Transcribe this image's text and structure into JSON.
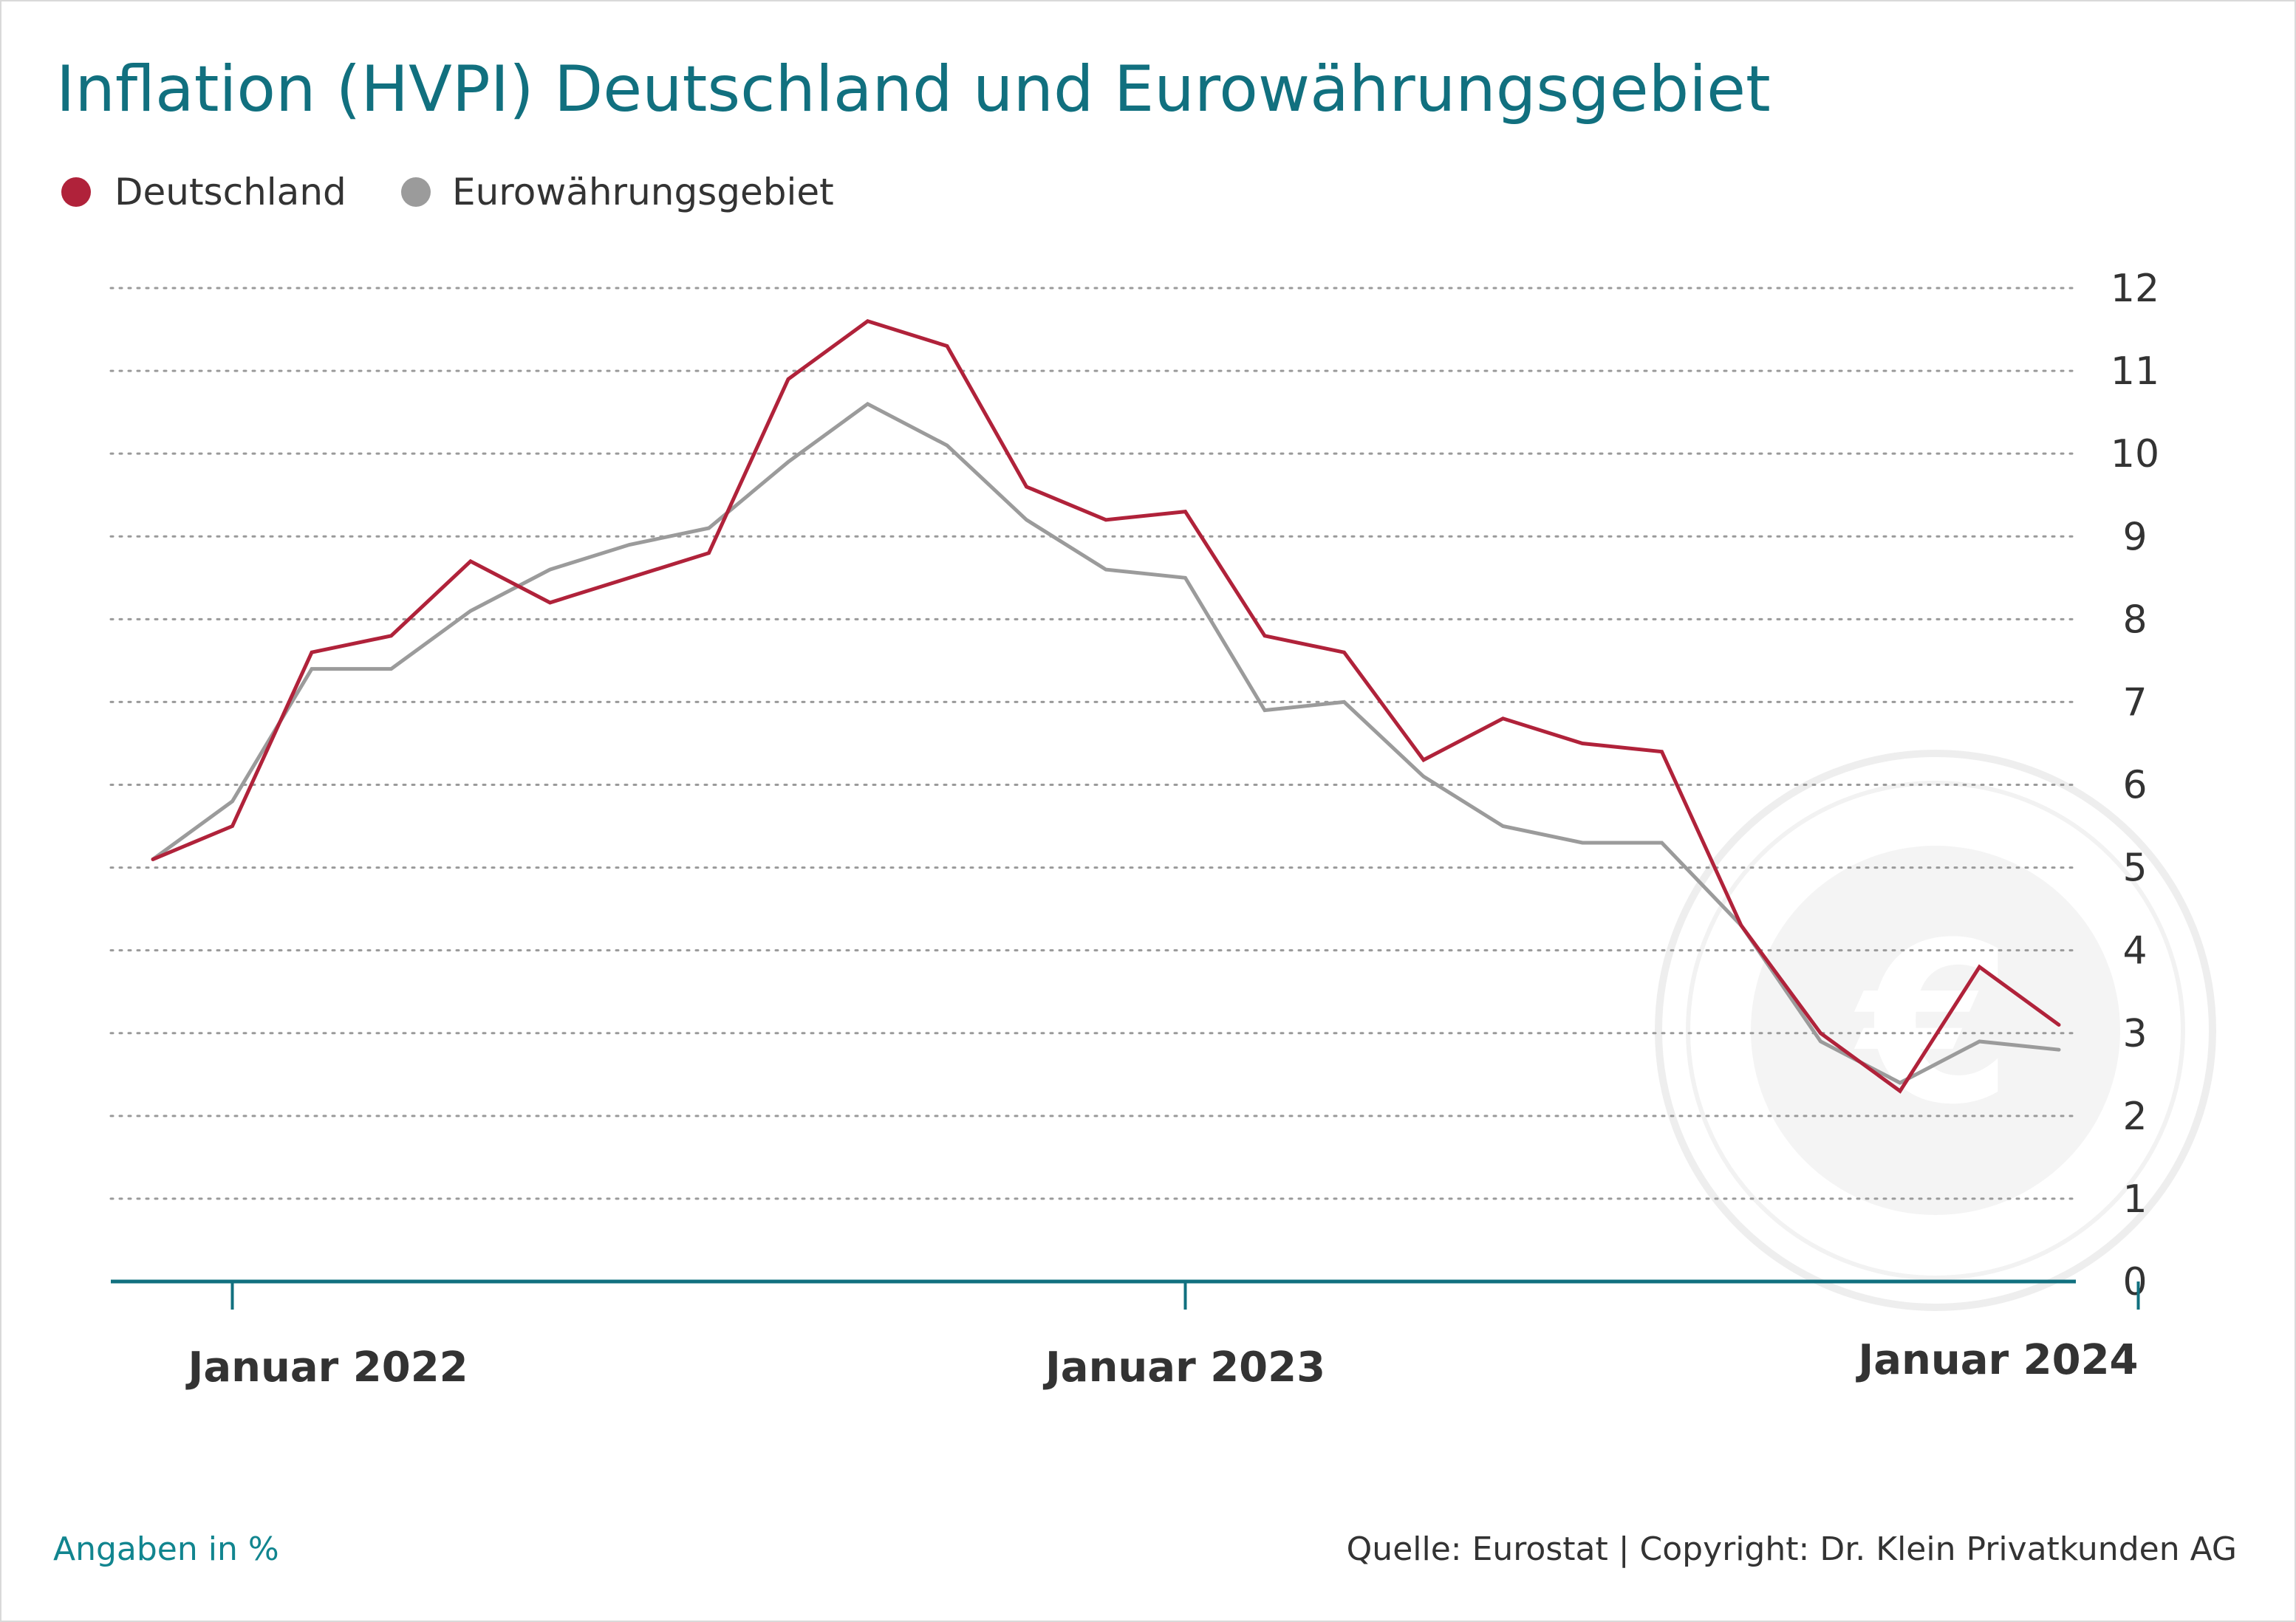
{
  "title": "Inflation (HVPI) Deutschland und Eurowährungsgebiet",
  "footer": {
    "unit_note": "Angaben in %",
    "source": "Quelle: Eurostat | Copyright: Dr. Klein Privatkunden AG"
  },
  "colors": {
    "title": "#11707f",
    "deutschland": "#b0223a",
    "euro": "#9b9b9b",
    "axis": "#11707f",
    "grid": "#9a9a9a",
    "watermark": "#ececec"
  },
  "watermark_icon": "euro-seal-icon",
  "chart_data": {
    "type": "line",
    "ylim": [
      0,
      12
    ],
    "yticks": [
      "0",
      "1",
      "2",
      "3",
      "4",
      "5",
      "6",
      "7",
      "8",
      "9",
      "10",
      "11",
      "12"
    ],
    "x_tick_labels": [
      "Januar 2022",
      "Januar 2023",
      "Januar 2024"
    ],
    "x": [
      "2021-12",
      "2022-01",
      "2022-02",
      "2022-03",
      "2022-04",
      "2022-05",
      "2022-06",
      "2022-07",
      "2022-08",
      "2022-09",
      "2022-10",
      "2022-11",
      "2022-12",
      "2023-01",
      "2023-02",
      "2023-03",
      "2023-04",
      "2023-05",
      "2023-06",
      "2023-07",
      "2023-08",
      "2023-09",
      "2023-10",
      "2023-11",
      "2023-12",
      "2024-01"
    ],
    "grid": true,
    "legend_position": "top-left",
    "series": [
      {
        "name": "Deutschland",
        "color": "#b0223a",
        "values": [
          5.1,
          5.5,
          7.6,
          7.8,
          8.7,
          8.2,
          8.5,
          8.8,
          10.9,
          11.6,
          11.3,
          9.6,
          9.2,
          9.3,
          7.8,
          7.6,
          6.3,
          6.8,
          6.5,
          6.4,
          4.3,
          3.0,
          2.3,
          3.8,
          3.1,
          null
        ]
      },
      {
        "name": "Eurowährungsgebiet",
        "color": "#9b9b9b",
        "values": [
          5.1,
          5.8,
          7.4,
          7.4,
          8.1,
          8.6,
          8.9,
          9.1,
          9.9,
          10.6,
          10.1,
          9.2,
          8.6,
          8.5,
          6.9,
          7.0,
          6.1,
          5.5,
          5.3,
          5.3,
          4.3,
          2.9,
          2.4,
          2.9,
          2.8,
          null
        ]
      }
    ]
  }
}
